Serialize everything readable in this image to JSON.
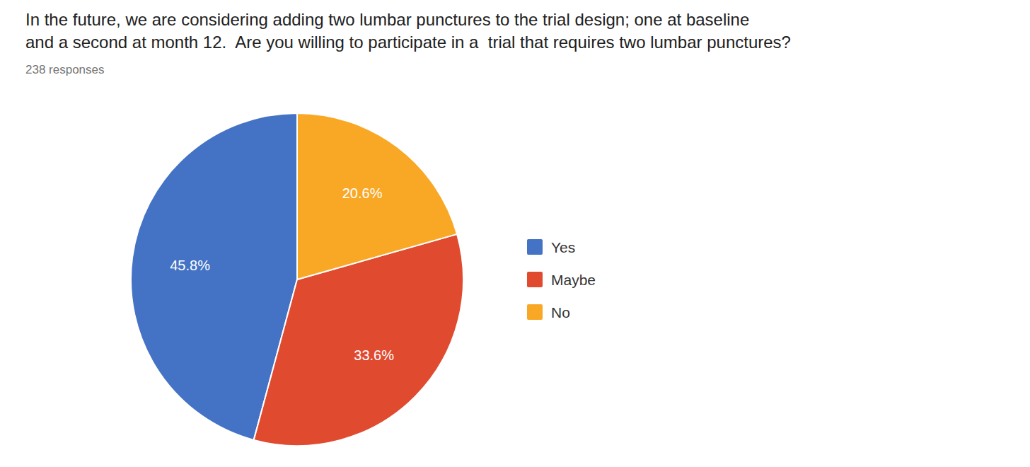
{
  "chart_data": {
    "type": "pie",
    "title": "In the future, we are considering adding two lumbar punctures to the trial design; one at baseline\nand a second at month 12.  Are you willing to participate in a  trial that requires two lumbar punctures?",
    "subtitle": "238 responses",
    "categories": [
      "Yes",
      "Maybe",
      "No"
    ],
    "values": [
      45.8,
      33.6,
      20.6
    ],
    "value_labels": [
      "45.8%",
      "33.6%",
      "20.6%"
    ],
    "colors": [
      "#4472C4",
      "#E04A2F",
      "#F9A825"
    ],
    "data_labels": true,
    "legend": "right"
  }
}
